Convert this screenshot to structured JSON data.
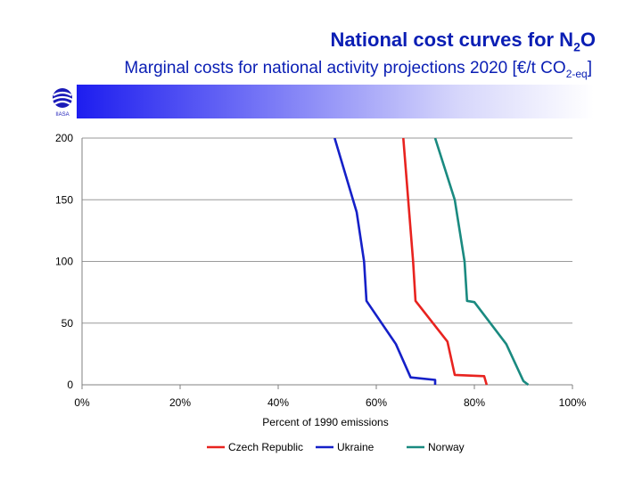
{
  "header": {
    "title_main": "National cost curves for N",
    "title_sub": "2",
    "title_end": "O",
    "subtitle_main": "Marginal costs for national activity projections 2020 [€/t CO",
    "subtitle_sub": "2-eq",
    "subtitle_end": "]"
  },
  "logo": {
    "text": "IIASA"
  },
  "colors": {
    "title": "#0a1eb4",
    "czech": "#e8231f",
    "ukraine": "#1520c8",
    "norway": "#1a8a80"
  },
  "chart_data": {
    "type": "line",
    "title": "",
    "xlabel": "Percent of 1990 emissions",
    "ylabel": "",
    "xlim": [
      0,
      100
    ],
    "ylim": [
      0,
      200
    ],
    "x_ticks": [
      0,
      20,
      40,
      60,
      80,
      100
    ],
    "x_tick_labels": [
      "0%",
      "20%",
      "40%",
      "60%",
      "80%",
      "100%"
    ],
    "y_ticks": [
      0,
      50,
      100,
      150,
      200
    ],
    "y_tick_labels": [
      "0",
      "50",
      "100",
      "150",
      "200"
    ],
    "grid": "horizontal",
    "legend_position": "bottom",
    "series": [
      {
        "name": "Czech Republic",
        "color": "#e8231f",
        "points": [
          [
            65.5,
            200
          ],
          [
            66.5,
            150
          ],
          [
            67.5,
            100
          ],
          [
            68,
            68
          ],
          [
            74.5,
            35
          ],
          [
            76,
            8
          ],
          [
            82,
            7
          ],
          [
            82.5,
            0
          ]
        ]
      },
      {
        "name": "Ukraine",
        "color": "#1520c8",
        "points": [
          [
            51.5,
            200
          ],
          [
            56,
            140
          ],
          [
            57.5,
            100
          ],
          [
            58,
            68
          ],
          [
            64,
            33
          ],
          [
            67,
            6
          ],
          [
            72,
            4
          ],
          [
            72,
            0
          ]
        ]
      },
      {
        "name": "Norway",
        "color": "#1a8a80",
        "points": [
          [
            72,
            200
          ],
          [
            76,
            150
          ],
          [
            78,
            100
          ],
          [
            78.5,
            68
          ],
          [
            80,
            67
          ],
          [
            86.5,
            33
          ],
          [
            90,
            3
          ],
          [
            91,
            0
          ]
        ]
      }
    ]
  }
}
